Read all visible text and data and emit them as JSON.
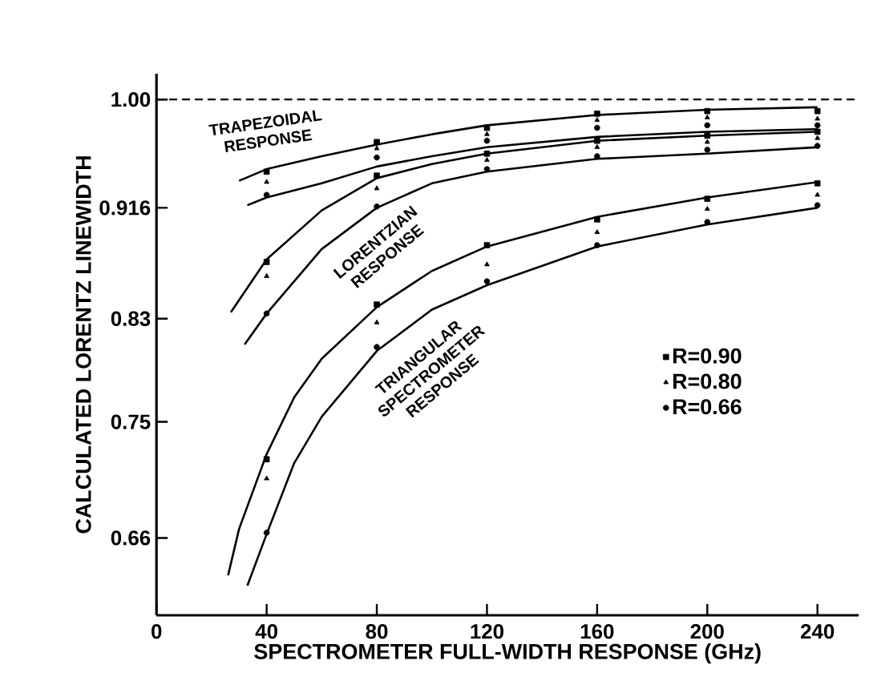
{
  "chart_data": {
    "type": "scatter",
    "xlabel": "SPECTROMETER FULL-WIDTH RESPONSE (GHz)",
    "ylabel": "CALCULATED LORENTZ LINEWIDTH",
    "xlim": [
      0,
      255
    ],
    "xticks": [
      0,
      40,
      80,
      120,
      160,
      200,
      240
    ],
    "ylim": [
      0.6,
      1.02
    ],
    "yticks": [
      0.66,
      0.75,
      0.83,
      0.916,
      {
        "value": 1.0,
        "label": "1.00"
      }
    ],
    "legend": "center right",
    "ref_lines": [
      {
        "axis": "y",
        "value": 1.0,
        "line_style": "dashed",
        "color": "#000000"
      }
    ],
    "annotations": [
      "TRAPEZOIDAL RESPONSE",
      "LORENTZIAN RESPONSE",
      "TRIANGULAR SPECTROMETER RESPONSE"
    ],
    "series": [
      {
        "type": "line",
        "color": "#000000",
        "x": [
          30,
          40,
          60,
          80,
          100,
          120,
          160,
          200,
          240
        ],
        "values": [
          0.937,
          0.946,
          0.956,
          0.965,
          0.973,
          0.98,
          0.988,
          0.992,
          0.994
        ]
      },
      {
        "type": "line",
        "color": "#000000",
        "x": [
          33,
          40,
          60,
          80,
          100,
          120,
          160,
          200,
          240
        ],
        "values": [
          0.918,
          0.924,
          0.935,
          0.948,
          0.956,
          0.963,
          0.971,
          0.975,
          0.977
        ]
      },
      {
        "type": "line",
        "color": "#000000",
        "x": [
          27,
          40,
          60,
          80,
          100,
          120,
          160,
          200,
          240
        ],
        "values": [
          0.835,
          0.876,
          0.914,
          0.939,
          0.95,
          0.958,
          0.968,
          0.972,
          0.975
        ]
      },
      {
        "type": "line",
        "color": "#000000",
        "x": [
          32,
          40,
          60,
          80,
          100,
          120,
          160,
          200,
          240
        ],
        "values": [
          0.81,
          0.834,
          0.884,
          0.916,
          0.935,
          0.944,
          0.954,
          0.958,
          0.963
        ]
      },
      {
        "type": "line",
        "color": "#000000",
        "x": [
          26,
          30,
          40,
          50,
          60,
          80,
          100,
          120,
          160,
          200,
          240
        ],
        "values": [
          0.631,
          0.667,
          0.725,
          0.769,
          0.799,
          0.839,
          0.867,
          0.886,
          0.909,
          0.924,
          0.936
        ]
      },
      {
        "type": "line",
        "color": "#000000",
        "x": [
          33,
          40,
          50,
          60,
          80,
          100,
          120,
          160,
          200,
          240
        ],
        "values": [
          0.623,
          0.663,
          0.718,
          0.754,
          0.805,
          0.837,
          0.856,
          0.886,
          0.903,
          0.916
        ]
      },
      {
        "name": "R=0.90",
        "marker": "square",
        "color": "#000000",
        "x": [
          40,
          80,
          120,
          160,
          200,
          240,
          40,
          80,
          120,
          160,
          200,
          240,
          40,
          80,
          120,
          160,
          200,
          240
        ],
        "values": [
          0.944,
          0.967,
          0.978,
          0.989,
          0.991,
          0.991,
          0.874,
          0.941,
          0.958,
          0.968,
          0.972,
          0.975,
          0.721,
          0.841,
          0.887,
          0.907,
          0.923,
          0.935
        ]
      },
      {
        "name": "R=0.80",
        "marker": "triangle",
        "color": "#000000",
        "x": [
          40,
          80,
          120,
          160,
          200,
          240,
          40,
          80,
          120,
          160,
          200,
          240,
          40,
          80,
          120,
          160,
          200,
          240
        ],
        "values": [
          0.936,
          0.962,
          0.973,
          0.984,
          0.986,
          0.985,
          0.863,
          0.931,
          0.953,
          0.963,
          0.967,
          0.97,
          0.706,
          0.827,
          0.872,
          0.897,
          0.915,
          0.926
        ]
      },
      {
        "name": "R=0.66",
        "marker": "circle",
        "color": "#000000",
        "x": [
          40,
          80,
          120,
          160,
          200,
          240,
          40,
          80,
          120,
          160,
          200,
          240,
          40,
          80,
          120,
          160,
          200,
          240
        ],
        "values": [
          0.926,
          0.955,
          0.968,
          0.978,
          0.98,
          0.98,
          0.834,
          0.917,
          0.946,
          0.956,
          0.961,
          0.964,
          0.664,
          0.808,
          0.859,
          0.887,
          0.905,
          0.918
        ]
      }
    ]
  }
}
